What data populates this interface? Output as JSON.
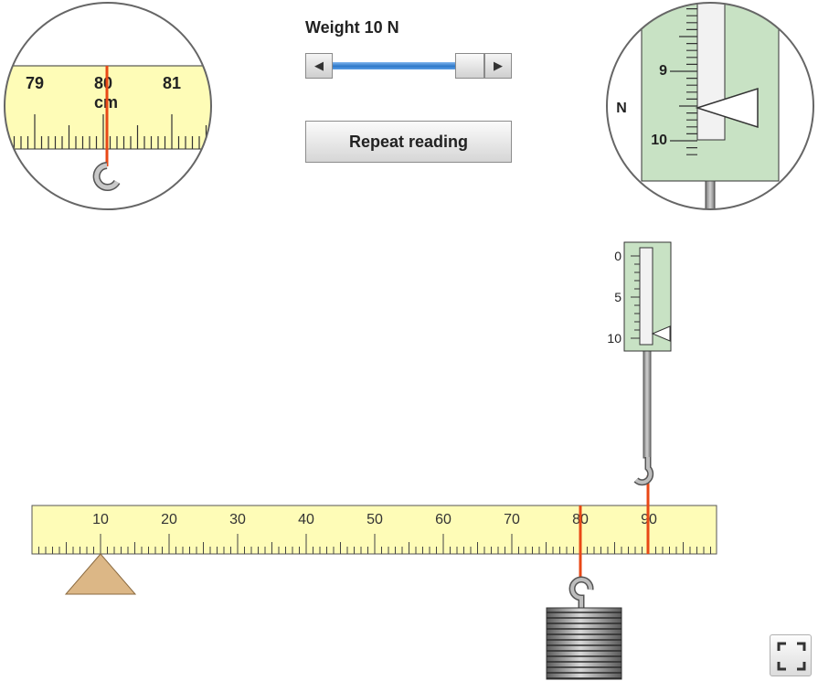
{
  "weight": {
    "label": "Weight 10 N",
    "value_N": 10
  },
  "slider": {
    "left_arrow": "◀",
    "right_arrow": "▶",
    "level": 1.0
  },
  "buttons": {
    "repeat": "Repeat reading"
  },
  "ruler": {
    "ticks": [
      "10",
      "20",
      "30",
      "40",
      "50",
      "60",
      "70",
      "80",
      "90"
    ]
  },
  "zoom_ruler": {
    "ticks": [
      "79",
      "80",
      "81"
    ],
    "unit": "cm"
  },
  "zoom_balance": {
    "ticks": [
      "9",
      "10"
    ],
    "unit": "N"
  },
  "spring_balance": {
    "ticks": [
      "0",
      "5",
      "10"
    ],
    "reading_N": 10
  },
  "positions": {
    "pivot_cm": 10,
    "weight_cm": 80,
    "spring_cm": 90
  },
  "colors": {
    "ruler_fill": "#fefcb7",
    "balance_fill": "#c8e2c4",
    "marker": "#e84816",
    "pivot": "#dcb786",
    "slider_track": "#2f78c8"
  },
  "icons": {
    "fullscreen": "fullscreen-icon"
  }
}
